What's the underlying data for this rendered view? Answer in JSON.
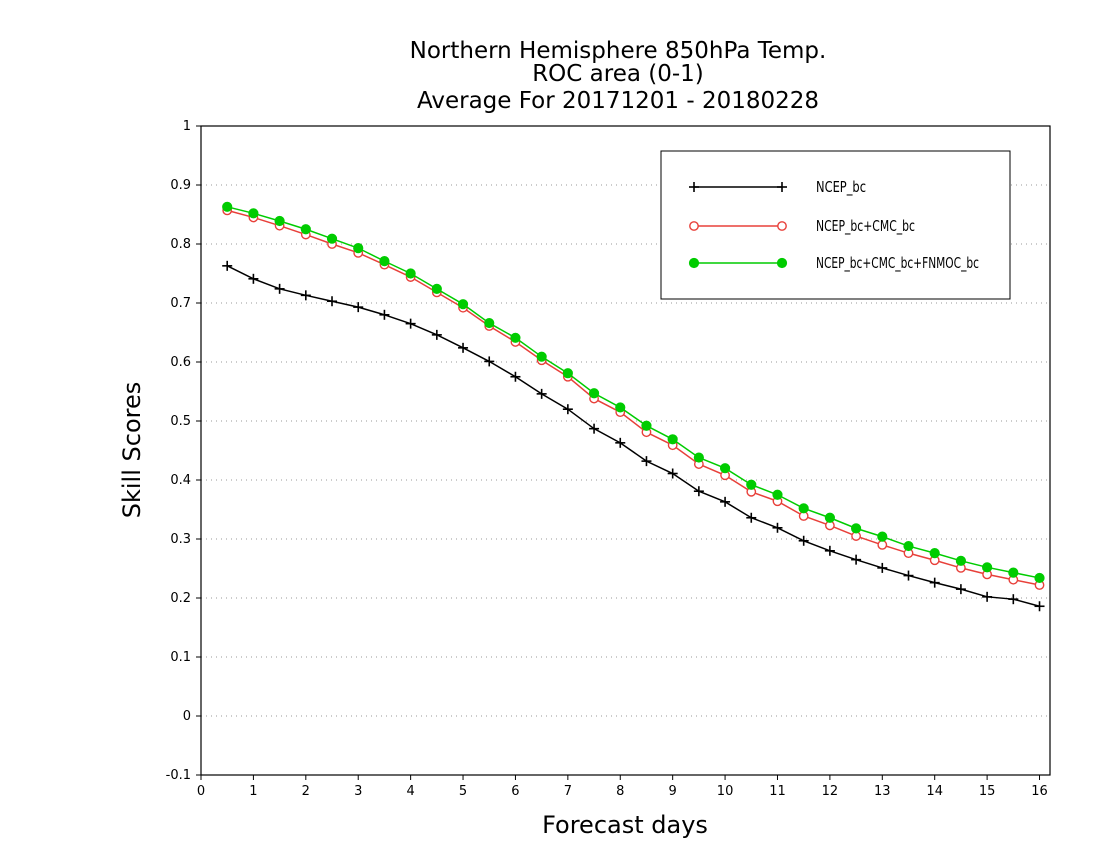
{
  "title_lines": [
    "Northern Hemisphere 850hPa Temp.",
    "ROC area (0-1)",
    "Average For 20171201 - 20180228"
  ],
  "chart_data": {
    "type": "line",
    "title": "Northern Hemisphere 850hPa Temp. / ROC area (0-1) / Average For 20171201 - 20180228",
    "xlabel": "Forecast days",
    "ylabel": "Skill Scores",
    "xlim": [
      0,
      16.2
    ],
    "ylim": [
      -0.1,
      1
    ],
    "xticks": [
      "0",
      "1",
      "2",
      "3",
      "4",
      "5",
      "6",
      "7",
      "8",
      "9",
      "10",
      "11",
      "12",
      "13",
      "14",
      "15",
      "16"
    ],
    "yticks": [
      "-0.1",
      "0",
      "0.1",
      "0.2",
      "0.3",
      "0.4",
      "0.5",
      "0.6",
      "0.7",
      "0.8",
      "0.9",
      "1"
    ],
    "grid": "horizontal dotted",
    "legend_position": "top-right",
    "x": [
      0.5,
      1,
      1.5,
      2,
      2.5,
      3,
      3.5,
      4,
      4.5,
      5,
      5.5,
      6,
      6.5,
      7,
      7.5,
      8,
      8.5,
      9,
      9.5,
      10,
      10.5,
      11,
      11.5,
      12,
      12.5,
      13,
      13.5,
      14,
      14.5,
      15,
      15.5,
      16
    ],
    "series": [
      {
        "name": "NCEP_bc",
        "color": "#000000",
        "marker": "plus",
        "values": [
          0.763,
          0.741,
          0.724,
          0.713,
          0.703,
          0.693,
          0.68,
          0.665,
          0.646,
          0.624,
          0.601,
          0.575,
          0.546,
          0.52,
          0.487,
          0.463,
          0.432,
          0.411,
          0.381,
          0.363,
          0.336,
          0.319,
          0.297,
          0.28,
          0.265,
          0.251,
          0.238,
          0.226,
          0.215,
          0.202,
          0.198,
          0.186
        ]
      },
      {
        "name": "NCEP_bc+CMC_bc",
        "color": "#e8403a",
        "marker": "open-circle",
        "values": [
          0.857,
          0.845,
          0.831,
          0.816,
          0.8,
          0.785,
          0.765,
          0.744,
          0.718,
          0.692,
          0.661,
          0.634,
          0.603,
          0.575,
          0.538,
          0.515,
          0.481,
          0.459,
          0.427,
          0.408,
          0.38,
          0.364,
          0.339,
          0.323,
          0.305,
          0.29,
          0.276,
          0.264,
          0.251,
          0.24,
          0.231,
          0.222
        ]
      },
      {
        "name": "NCEP_bc+CMC_bc+FNMOC_bc",
        "color": "#00cc00",
        "marker": "filled-circle",
        "values": [
          0.863,
          0.852,
          0.839,
          0.825,
          0.809,
          0.793,
          0.771,
          0.75,
          0.724,
          0.698,
          0.666,
          0.641,
          0.609,
          0.581,
          0.547,
          0.523,
          0.492,
          0.469,
          0.438,
          0.42,
          0.392,
          0.375,
          0.352,
          0.336,
          0.318,
          0.304,
          0.288,
          0.276,
          0.263,
          0.252,
          0.243,
          0.234
        ]
      }
    ]
  }
}
